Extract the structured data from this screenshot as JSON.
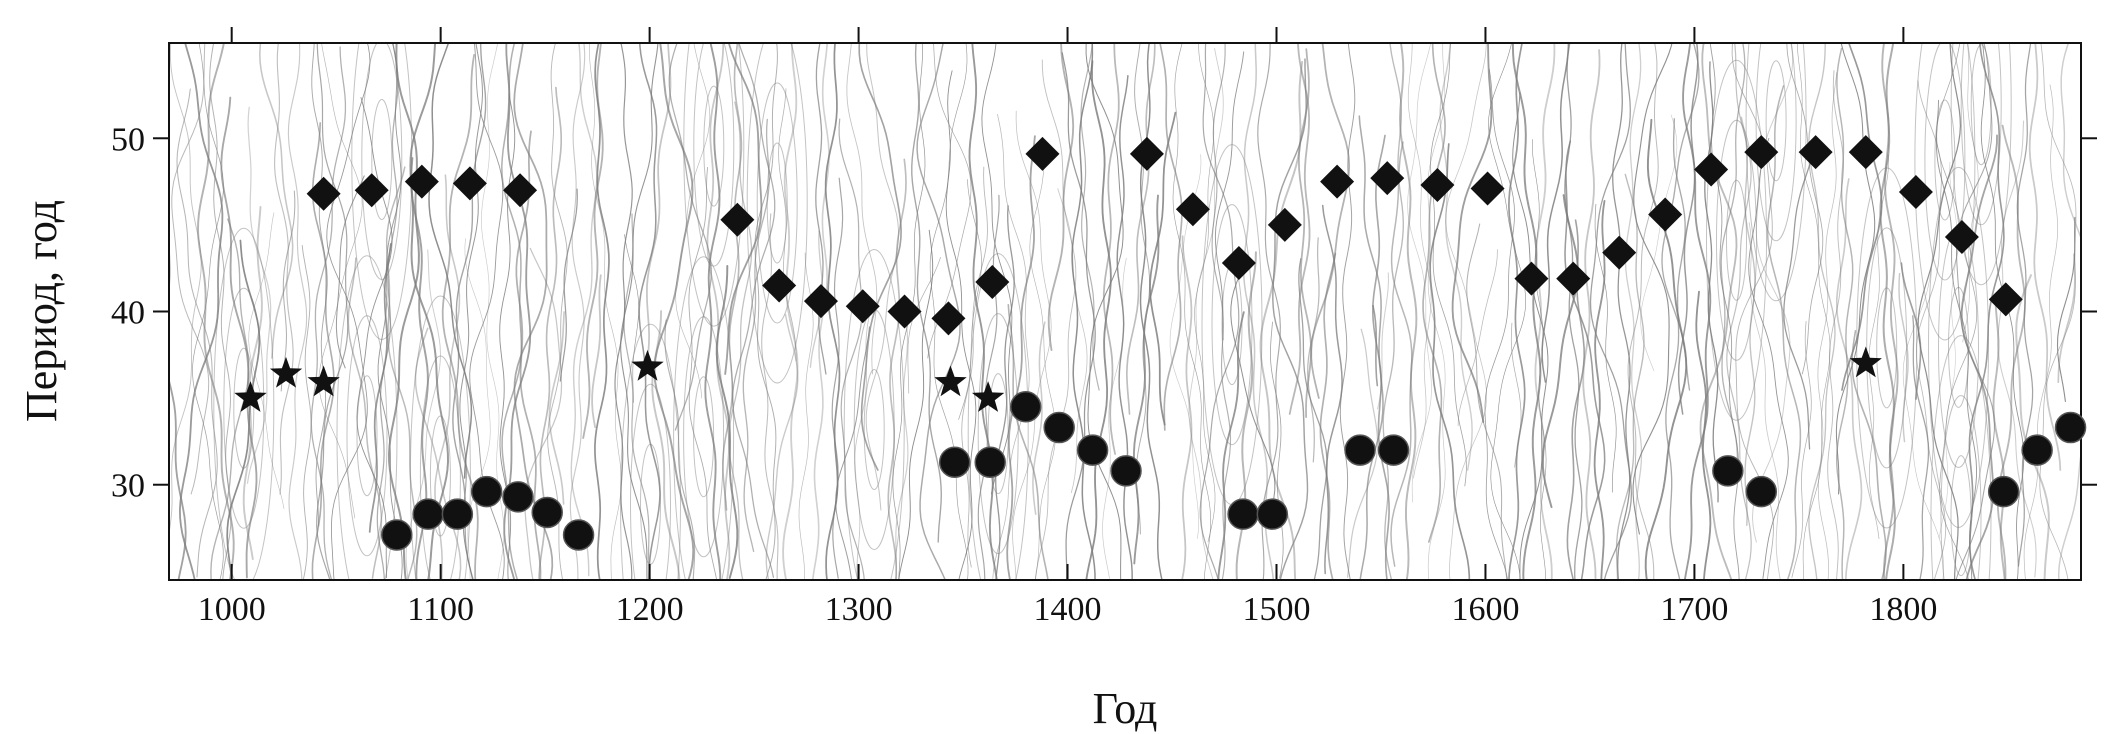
{
  "chart_data": {
    "type": "scatter",
    "title": "",
    "xlabel": "Год",
    "ylabel": "Период, год",
    "xlim": [
      970,
      1885
    ],
    "ylim": [
      24.5,
      55.5
    ],
    "x_ticks": [
      1000,
      1100,
      1200,
      1300,
      1400,
      1500,
      1600,
      1700,
      1800
    ],
    "x_tick_labels": [
      "1000",
      "1100",
      "1200",
      "1300",
      "1400",
      "1500",
      "1600",
      "1700",
      "1800"
    ],
    "y_ticks": [
      30,
      40,
      50
    ],
    "y_tick_labels": [
      "30",
      "40",
      "50"
    ],
    "grid": false,
    "legend": "none",
    "background": "wavelet contour lines (grey)",
    "colors": {
      "markers": "#111111",
      "contours": "#7a7a7a",
      "frame": "#111111"
    },
    "series": [
      {
        "marker": "diamond",
        "points": [
          [
            1044,
            46.8
          ],
          [
            1067,
            47.0
          ],
          [
            1091,
            47.5
          ],
          [
            1114,
            47.4
          ],
          [
            1138,
            47.0
          ],
          [
            1242,
            45.3
          ],
          [
            1262,
            41.5
          ],
          [
            1282,
            40.6
          ],
          [
            1302,
            40.3
          ],
          [
            1322,
            40.0
          ],
          [
            1343,
            39.6
          ],
          [
            1364,
            41.7
          ],
          [
            1388,
            49.1
          ],
          [
            1438,
            49.1
          ],
          [
            1460,
            45.9
          ],
          [
            1482,
            42.8
          ],
          [
            1504,
            45.0
          ],
          [
            1529,
            47.5
          ],
          [
            1553,
            47.7
          ],
          [
            1577,
            47.3
          ],
          [
            1601,
            47.1
          ],
          [
            1622,
            41.9
          ],
          [
            1642,
            41.9
          ],
          [
            1664,
            43.4
          ],
          [
            1686,
            45.6
          ],
          [
            1708,
            48.2
          ],
          [
            1732,
            49.2
          ],
          [
            1758,
            49.2
          ],
          [
            1782,
            49.2
          ],
          [
            1806,
            46.9
          ],
          [
            1828,
            44.3
          ],
          [
            1849,
            40.7
          ]
        ]
      },
      {
        "marker": "circle",
        "points": [
          [
            1079,
            27.1
          ],
          [
            1094,
            28.3
          ],
          [
            1108,
            28.3
          ],
          [
            1122,
            29.6
          ],
          [
            1137,
            29.3
          ],
          [
            1151,
            28.4
          ],
          [
            1166,
            27.1
          ],
          [
            1346,
            31.3
          ],
          [
            1363,
            31.3
          ],
          [
            1380,
            34.5
          ],
          [
            1396,
            33.3
          ],
          [
            1412,
            32.0
          ],
          [
            1428,
            30.8
          ],
          [
            1484,
            28.3
          ],
          [
            1498,
            28.3
          ],
          [
            1540,
            32.0
          ],
          [
            1556,
            32.0
          ],
          [
            1716,
            30.8
          ],
          [
            1732,
            29.6
          ],
          [
            1848,
            29.6
          ],
          [
            1864,
            32.0
          ],
          [
            1880,
            33.3
          ]
        ]
      },
      {
        "marker": "star",
        "points": [
          [
            1009,
            35.0
          ],
          [
            1026,
            36.4
          ],
          [
            1044,
            35.9
          ],
          [
            1199,
            36.8
          ],
          [
            1344,
            35.9
          ],
          [
            1362,
            35.0
          ],
          [
            1782,
            37.0
          ]
        ]
      }
    ]
  }
}
